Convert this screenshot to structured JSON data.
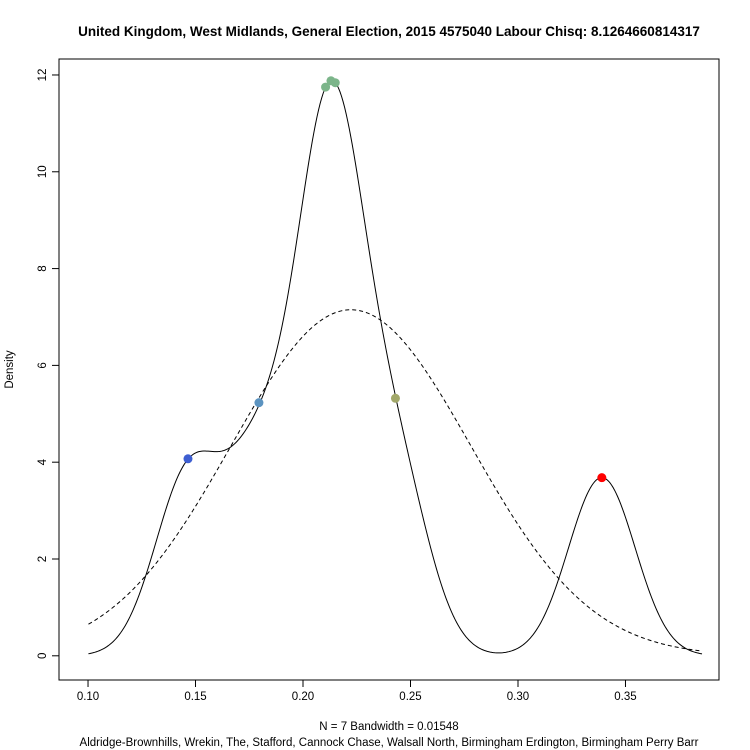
{
  "chart_data": {
    "type": "line",
    "title": "United Kingdom, West Midlands, General Election, 2015 4575040 Labour Chisq: 8.1264660814317",
    "xlabel": "N = 7   Bandwidth = 0.01548",
    "sub": "Aldridge-Brownhills, Wrekin, The, Stafford, Cannock Chase, Walsall North, Birmingham Erdington, Birmingham Perry Barr",
    "ylabel": "Density",
    "xlim": [
      0.0865,
      0.3935
    ],
    "ylim": [
      -0.5,
      12.33
    ],
    "x_ticks": [
      0.1,
      0.15,
      0.2,
      0.25,
      0.3,
      0.35
    ],
    "x_tick_labels": [
      "0.10",
      "0.15",
      "0.20",
      "0.25",
      "0.30",
      "0.35"
    ],
    "y_ticks": [
      0,
      2,
      4,
      6,
      8,
      10,
      12
    ],
    "y_tick_labels": [
      "0",
      "2",
      "4",
      "6",
      "8",
      "10",
      "12"
    ],
    "grid": false,
    "series": [
      {
        "style": "solid",
        "color": "#000000",
        "kind": "kernel-density",
        "bandwidth": 0.01548,
        "x_range": [
          0.1002,
          0.3856
        ],
        "observations": [
          0.1465,
          0.1795,
          0.2105,
          0.213,
          0.215,
          0.243,
          0.339
        ]
      },
      {
        "style": "dashed",
        "color": "#000000",
        "kind": "normal-density",
        "mean": 0.2223,
        "sd": 0.0558,
        "x_range": [
          0.1002,
          0.3856
        ]
      }
    ],
    "points": [
      {
        "x": 0.1465,
        "y": 4.07,
        "color": "#3d5ed1"
      },
      {
        "x": 0.1795,
        "y": 5.23,
        "color": "#5b93c0"
      },
      {
        "x": 0.2105,
        "y": 11.75,
        "color": "#7cb58a"
      },
      {
        "x": 0.213,
        "y": 11.88,
        "color": "#7cb58a"
      },
      {
        "x": 0.215,
        "y": 11.84,
        "color": "#7cb58a"
      },
      {
        "x": 0.243,
        "y": 5.32,
        "color": "#a2a86a"
      },
      {
        "x": 0.339,
        "y": 3.68,
        "color": "#ff0000"
      }
    ]
  }
}
